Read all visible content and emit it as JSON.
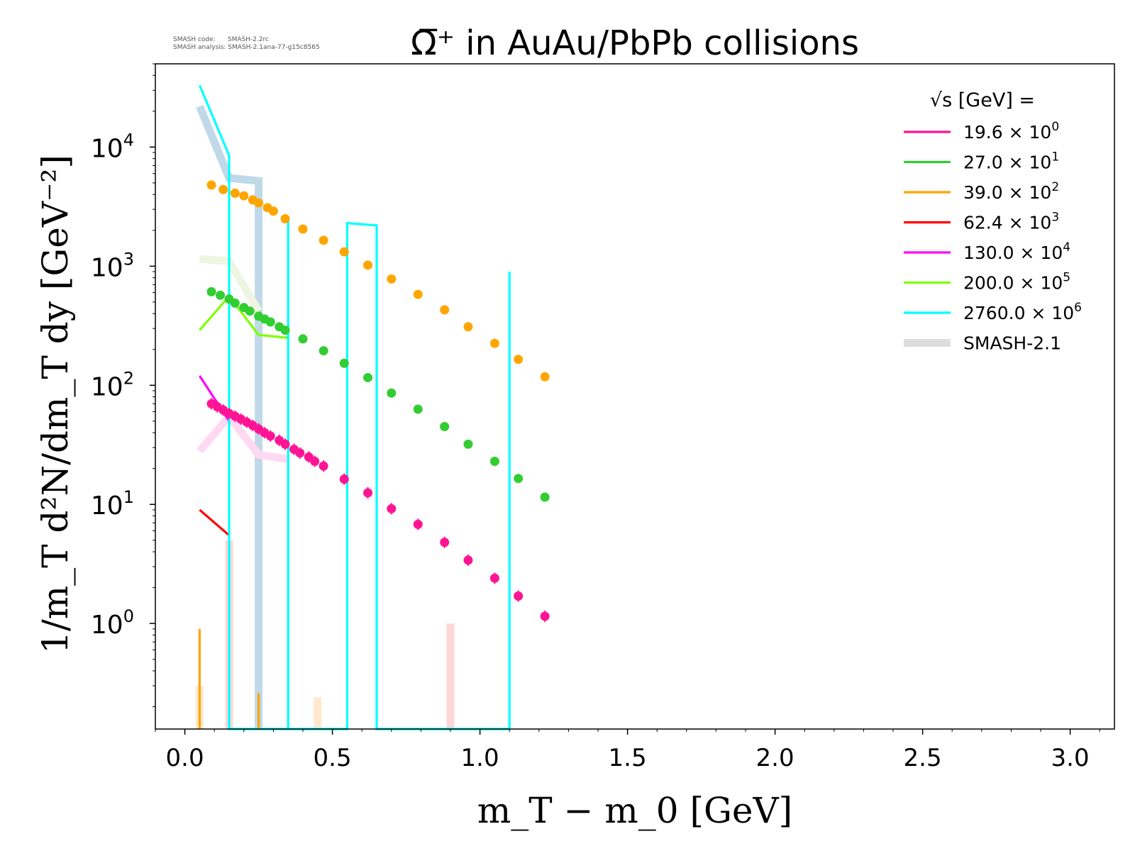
{
  "meta": {
    "code_line": "SMASH code:      SMASH-2.2rc",
    "analysis_line": "SMASH analysis: SMASH-2.1ana-77-g15c8565"
  },
  "chart_data": {
    "type": "scatter",
    "title": "Ω̅⁺ in AuAu/PbPb collisions",
    "xlabel": "m_T − m_0 [GeV]",
    "ylabel": "1/m_T d²N/dm_T dy [GeV⁻²]",
    "xlim": [
      -0.1,
      3.15
    ],
    "ylim": [
      0.13,
      50000
    ],
    "yscale": "log",
    "grid": false,
    "x_ticks": [
      0.0,
      0.5,
      1.0,
      1.5,
      2.0,
      2.5,
      3.0
    ],
    "x_tick_labels": [
      "0.0",
      "0.5",
      "1.0",
      "1.5",
      "2.0",
      "2.5",
      "3.0"
    ],
    "y_ticks": [
      1,
      10,
      100,
      1000,
      10000
    ],
    "y_tick_labels": [
      {
        "base": "10",
        "exp": "0"
      },
      {
        "base": "10",
        "exp": "1"
      },
      {
        "base": "10",
        "exp": "2"
      },
      {
        "base": "10",
        "exp": "3"
      },
      {
        "base": "10",
        "exp": "4"
      }
    ],
    "legend": {
      "placement": "top-right",
      "title": "√s [GeV] =",
      "entries": [
        {
          "value": "19.6",
          "base": "× 10",
          "exp": "0",
          "color": "#ff1493"
        },
        {
          "value": "27.0",
          "base": "× 10",
          "exp": "1",
          "color": "#32cd32"
        },
        {
          "value": "39.0",
          "base": "× 10",
          "exp": "2",
          "color": "#ffa500"
        },
        {
          "value": "62.4",
          "base": "× 10",
          "exp": "3",
          "color": "#ff0000"
        },
        {
          "value": "130.0",
          "base": "× 10",
          "exp": "4",
          "color": "#ff00ff"
        },
        {
          "value": "200.0",
          "base": "× 10",
          "exp": "5",
          "color": "#7fff00"
        },
        {
          "value": "2760.0",
          "base": "× 10",
          "exp": "6",
          "color": "#00ffff"
        },
        {
          "value": "SMASH-2.1",
          "base": "",
          "exp": "",
          "color": "#dddddd",
          "thick": true
        }
      ]
    },
    "series": [
      {
        "kind": "points",
        "color": "#ffa500",
        "x": [
          0.09,
          0.13,
          0.17,
          0.2,
          0.23,
          0.25,
          0.28,
          0.3,
          0.34,
          0.4,
          0.47,
          0.54,
          0.62,
          0.7,
          0.79,
          0.88,
          0.96,
          1.05,
          1.13,
          1.22
        ],
        "y": [
          4800,
          4400,
          4100,
          3900,
          3600,
          3400,
          3100,
          2900,
          2500,
          2050,
          1650,
          1320,
          1020,
          780,
          580,
          430,
          310,
          225,
          165,
          118
        ]
      },
      {
        "kind": "points",
        "color": "#32cd32",
        "x": [
          0.09,
          0.12,
          0.15,
          0.17,
          0.2,
          0.22,
          0.25,
          0.27,
          0.29,
          0.32,
          0.34,
          0.4,
          0.47,
          0.54,
          0.62,
          0.7,
          0.79,
          0.88,
          0.96,
          1.05,
          1.13,
          1.22
        ],
        "y": [
          610,
          570,
          530,
          490,
          450,
          420,
          380,
          360,
          340,
          310,
          290,
          245,
          195,
          153,
          116,
          86,
          63,
          45,
          32,
          23,
          16.5,
          11.5
        ]
      },
      {
        "kind": "points",
        "color": "#ff1493",
        "errorbars": true,
        "x": [
          0.09,
          0.11,
          0.13,
          0.15,
          0.17,
          0.19,
          0.21,
          0.23,
          0.25,
          0.27,
          0.29,
          0.32,
          0.34,
          0.37,
          0.39,
          0.42,
          0.44,
          0.47,
          0.54,
          0.62,
          0.7,
          0.79,
          0.88,
          0.96,
          1.05,
          1.13,
          1.22
        ],
        "y": [
          70,
          66,
          62,
          58,
          55,
          52,
          49,
          46,
          43,
          40,
          37.5,
          34.5,
          32,
          29,
          27,
          25,
          23,
          21,
          16.3,
          12.5,
          9.2,
          6.8,
          4.8,
          3.4,
          2.4,
          1.7,
          1.15
        ]
      },
      {
        "kind": "line",
        "color": "#ff0000",
        "x": [
          0.05,
          0.15
        ],
        "y": [
          9,
          5.5
        ]
      },
      {
        "kind": "line",
        "color": "#ff00ff",
        "x": [
          0.05,
          0.15
        ],
        "y": [
          120,
          50
        ]
      },
      {
        "kind": "line",
        "color": "#7fff00",
        "x": [
          0.05,
          0.15,
          0.25,
          0.35
        ],
        "y": [
          290,
          560,
          265,
          250
        ]
      },
      {
        "kind": "line",
        "color": "#00ffff",
        "x": [
          0.05,
          0.15,
          0.15,
          0.35,
          0.35,
          0.35,
          0.55,
          0.55,
          0.65,
          0.65,
          1.1,
          1.1
        ],
        "y": [
          33000,
          8500,
          0.13,
          0.13,
          2500,
          0.13,
          0.13,
          2300,
          2200,
          0.13,
          0.13,
          900
        ]
      },
      {
        "kind": "line",
        "color": "#ffa500",
        "x": [
          0.05,
          0.05
        ],
        "y": [
          0.13,
          0.9
        ]
      },
      {
        "kind": "line",
        "color": "#ffa500",
        "x": [
          0.25,
          0.25
        ],
        "y": [
          0.13,
          0.26
        ]
      },
      {
        "kind": "band",
        "color": "#c0d9e8",
        "x": [
          0.05,
          0.15,
          0.25,
          0.25
        ],
        "y": [
          22000,
          5500,
          5200,
          0.13
        ]
      },
      {
        "kind": "band",
        "color": "#eef5e2",
        "x": [
          0.05,
          0.15,
          0.25
        ],
        "y": [
          1150,
          1100,
          420
        ]
      },
      {
        "kind": "band",
        "color": "#ffd9f2",
        "x": [
          0.05,
          0.15,
          0.25,
          0.35
        ],
        "y": [
          28,
          55,
          26,
          24
        ]
      },
      {
        "kind": "band",
        "color": "#ffd6d6",
        "x": [
          0.15,
          0.15
        ],
        "y": [
          0.13,
          5
        ]
      },
      {
        "kind": "band",
        "color": "#ffd6d6",
        "x": [
          0.9,
          0.9
        ],
        "y": [
          0.13,
          1.0
        ]
      },
      {
        "kind": "band",
        "color": "#ffe8cc",
        "x": [
          0.05,
          0.05
        ],
        "y": [
          0.13,
          0.3
        ]
      },
      {
        "kind": "band",
        "color": "#ffe8cc",
        "x": [
          0.45,
          0.45
        ],
        "y": [
          0.13,
          0.24
        ]
      }
    ]
  }
}
